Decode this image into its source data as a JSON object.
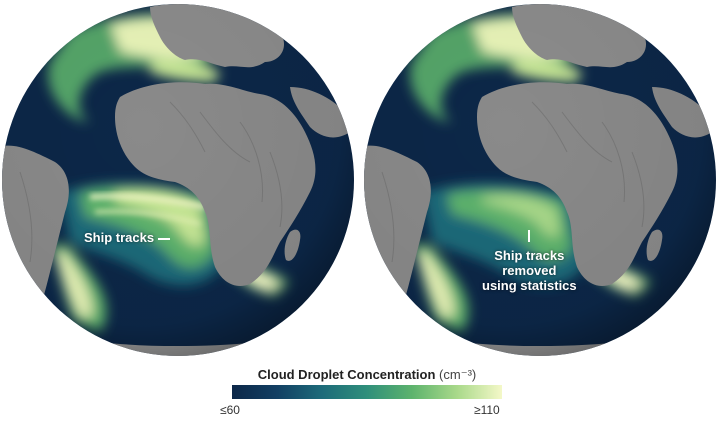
{
  "callouts": {
    "left": "Ship tracks",
    "right_line1": "Ship tracks",
    "right_line2": "removed",
    "right_line3": "using statistics"
  },
  "legend": {
    "title": "Cloud Droplet Concentration",
    "unit": "(cm⁻³)",
    "min_label": "≤60",
    "max_label": "≥110",
    "colors": [
      "#0c2748",
      "#123f63",
      "#1d6b7a",
      "#2f8f7b",
      "#5db36d",
      "#a9d98a",
      "#f4f8c8"
    ]
  },
  "colors": {
    "ocean_low": "#0c2748",
    "ocean_mid": "#1d6b7a",
    "ocean_high": "#f4f8c8",
    "land": "#8a8a8a"
  }
}
